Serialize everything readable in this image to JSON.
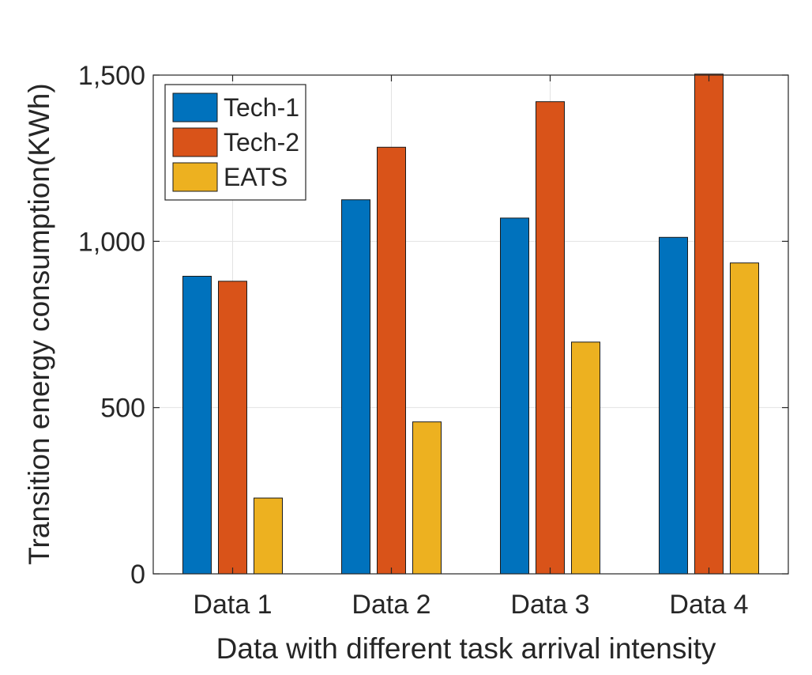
{
  "chart_data": {
    "type": "bar",
    "title": "",
    "xlabel": "Data with different task arrival intensity",
    "ylabel": "Transition energy consumption(KWh)",
    "categories": [
      "Data 1",
      "Data 2",
      "Data 3",
      "Data 4"
    ],
    "series": [
      {
        "name": "Tech-1",
        "color": "#0072BD",
        "values": [
          895,
          1125,
          1070,
          1012
        ]
      },
      {
        "name": "Tech-2",
        "color": "#D95319",
        "values": [
          880,
          1283,
          1420,
          1503
        ]
      },
      {
        "name": "EATS",
        "color": "#EDB120",
        "values": [
          228,
          457,
          697,
          935
        ]
      }
    ],
    "ylim": [
      0,
      1500
    ],
    "yticks": [
      0,
      500,
      1000,
      1500
    ],
    "ytick_labels": [
      "0",
      "500",
      "1,000",
      "1,500"
    ],
    "grid": true,
    "legend_position": "top-left"
  }
}
